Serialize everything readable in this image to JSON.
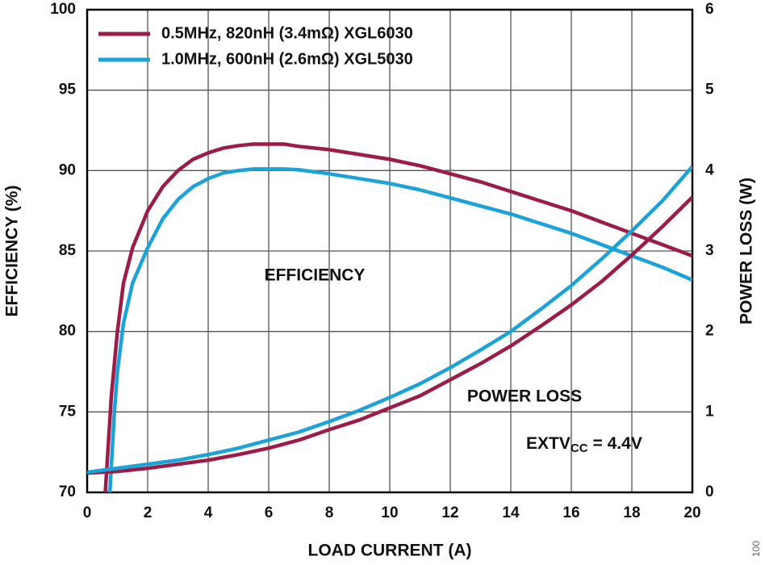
{
  "chart_data": {
    "type": "line",
    "x_label": "LOAD CURRENT (A)",
    "y_label": "EFFICIENCY (%)",
    "y2_label": "POWER LOSS (W)",
    "annotations": [
      "EFFICIENCY",
      "POWER LOSS"
    ],
    "condition": {
      "main": "EXTV",
      "sub": "CC",
      "rest": "= 4.4V"
    },
    "side_label": "100",
    "xlim": [
      0,
      20
    ],
    "xticks": [
      0,
      2,
      4,
      6,
      8,
      10,
      12,
      14,
      16,
      18,
      20
    ],
    "ylim": [
      70,
      100
    ],
    "yticks": [
      70,
      75,
      80,
      85,
      90,
      95,
      100
    ],
    "y2lim": [
      0,
      6
    ],
    "y2ticks": [
      0,
      1,
      2,
      3,
      4,
      5,
      6
    ],
    "grid": true,
    "legend": "upper left",
    "series": [
      {
        "name": "0.5MHz, 820nH (3.4mΩ) XGL6030",
        "color": "#9c1c48",
        "x": [
          0.6,
          0.8,
          1.0,
          1.2,
          1.5,
          2,
          2.5,
          3,
          3.5,
          4,
          4.5,
          5,
          5.5,
          6,
          6.5,
          7,
          8,
          9,
          10,
          11,
          12,
          13,
          14,
          15,
          16,
          17,
          18,
          19,
          20
        ],
        "values": [
          70,
          76,
          80,
          83,
          85.2,
          87.5,
          89,
          90,
          90.7,
          91.1,
          91.4,
          91.55,
          91.65,
          91.65,
          91.65,
          91.5,
          91.3,
          91,
          90.7,
          90.3,
          89.8,
          89.3,
          88.7,
          88.1,
          87.5,
          86.8,
          86.1,
          85.4,
          84.7
        ]
      },
      {
        "name": "1.0MHz, 600nH (2.6mΩ) XGL5030",
        "color": "#1ba3d8",
        "x": [
          0.75,
          0.9,
          1.0,
          1.2,
          1.5,
          2,
          2.5,
          3,
          3.5,
          4,
          4.5,
          5,
          5.5,
          6,
          6.5,
          7,
          8,
          9,
          10,
          11,
          12,
          13,
          14,
          15,
          16,
          17,
          18,
          19,
          20
        ],
        "values": [
          70,
          75,
          77.5,
          80.5,
          83,
          85.2,
          87,
          88.2,
          89,
          89.5,
          89.85,
          90,
          90.1,
          90.1,
          90.1,
          90.05,
          89.8,
          89.5,
          89.2,
          88.8,
          88.3,
          87.8,
          87.3,
          86.7,
          86.1,
          85.4,
          84.7,
          84,
          83.2
        ]
      },
      {
        "color": "#9c1c48",
        "axis": "y2",
        "x": [
          0,
          1,
          2,
          3,
          4,
          5,
          6,
          7,
          8,
          9,
          10,
          11,
          12,
          13,
          14,
          15,
          16,
          17,
          18,
          19,
          20
        ],
        "values": [
          0.24,
          0.26,
          0.3,
          0.35,
          0.4,
          0.47,
          0.55,
          0.65,
          0.78,
          0.9,
          1.05,
          1.2,
          1.4,
          1.6,
          1.82,
          2.07,
          2.33,
          2.62,
          2.95,
          3.3,
          3.67
        ]
      },
      {
        "color": "#1ba3d8",
        "axis": "y2",
        "x": [
          0,
          1,
          2,
          3,
          4,
          5,
          6,
          7,
          8,
          9,
          10,
          11,
          12,
          13,
          14,
          15,
          16,
          17,
          18,
          19,
          20
        ],
        "values": [
          0.25,
          0.3,
          0.35,
          0.4,
          0.47,
          0.55,
          0.65,
          0.75,
          0.88,
          1.02,
          1.18,
          1.35,
          1.55,
          1.77,
          2.0,
          2.28,
          2.57,
          2.9,
          3.25,
          3.62,
          4.05
        ]
      }
    ]
  }
}
